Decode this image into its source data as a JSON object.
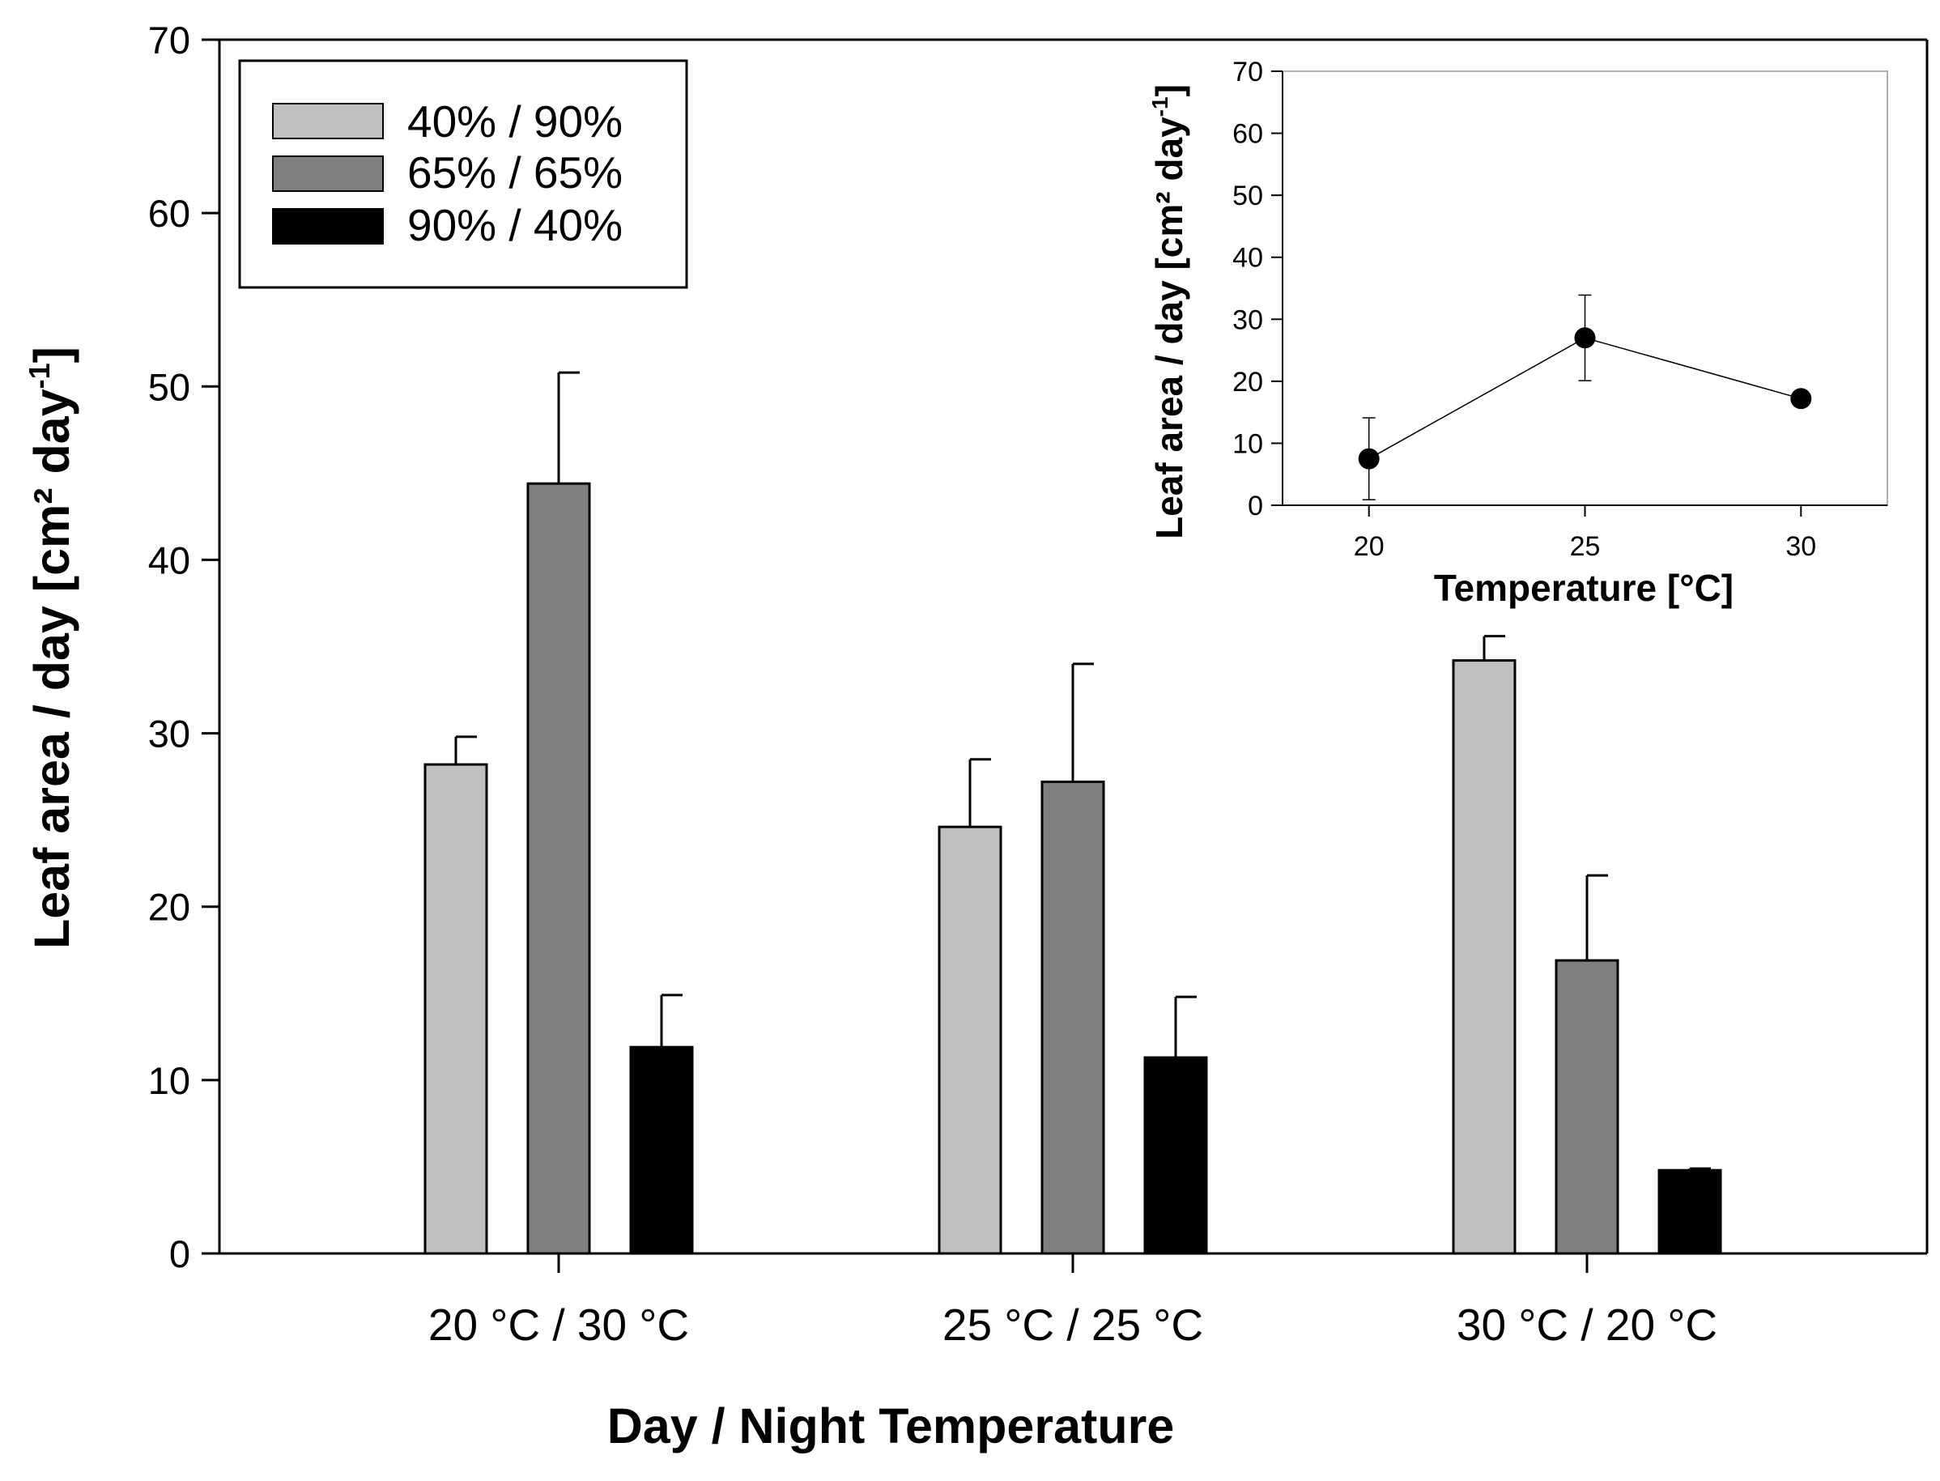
{
  "chart_data": [
    {
      "type": "bar",
      "title": "",
      "xlabel": "Day / Night Temperature",
      "ylabel": "Leaf area / day [cm² day",
      "ylabel_superscript": "-1",
      "ylabel_close": "]",
      "categories": [
        "20 °C / 30 °C",
        "25 °C / 25 °C",
        "30 °C / 20 °C"
      ],
      "ylim": [
        0,
        70
      ],
      "yticks": [
        "0",
        "10",
        "20",
        "30",
        "40",
        "50",
        "60",
        "70"
      ],
      "legend_position": "top-left",
      "series": [
        {
          "name": "40% / 90%",
          "color": "#c0c0c0",
          "values": [
            28.2,
            24.6,
            34.2
          ],
          "errors": [
            1.6,
            3.9,
            1.4
          ]
        },
        {
          "name": "65% / 65%",
          "color": "#808080",
          "values": [
            44.4,
            27.2,
            16.9
          ],
          "errors": [
            6.4,
            6.8,
            4.9
          ]
        },
        {
          "name": "90% / 40%",
          "color": "#000000",
          "values": [
            11.9,
            11.3,
            4.8
          ],
          "errors": [
            3.0,
            3.5,
            0.1
          ]
        }
      ]
    },
    {
      "type": "line",
      "title": "",
      "xlabel": "Temperature [°C]",
      "ylabel": "Leaf area / day [cm² day",
      "ylabel_superscript": "-1",
      "ylabel_close": "]",
      "x": [
        20,
        25,
        30
      ],
      "xticks": [
        "20",
        "25",
        "30"
      ],
      "xlim": [
        18,
        32
      ],
      "y": [
        7.5,
        27.0,
        17.2
      ],
      "errors": [
        6.6,
        6.9,
        0.5
      ],
      "ylim": [
        0,
        70
      ],
      "yticks": [
        "0",
        "10",
        "20",
        "30",
        "40",
        "50",
        "60",
        "70"
      ],
      "marker_color": "#000000"
    }
  ]
}
